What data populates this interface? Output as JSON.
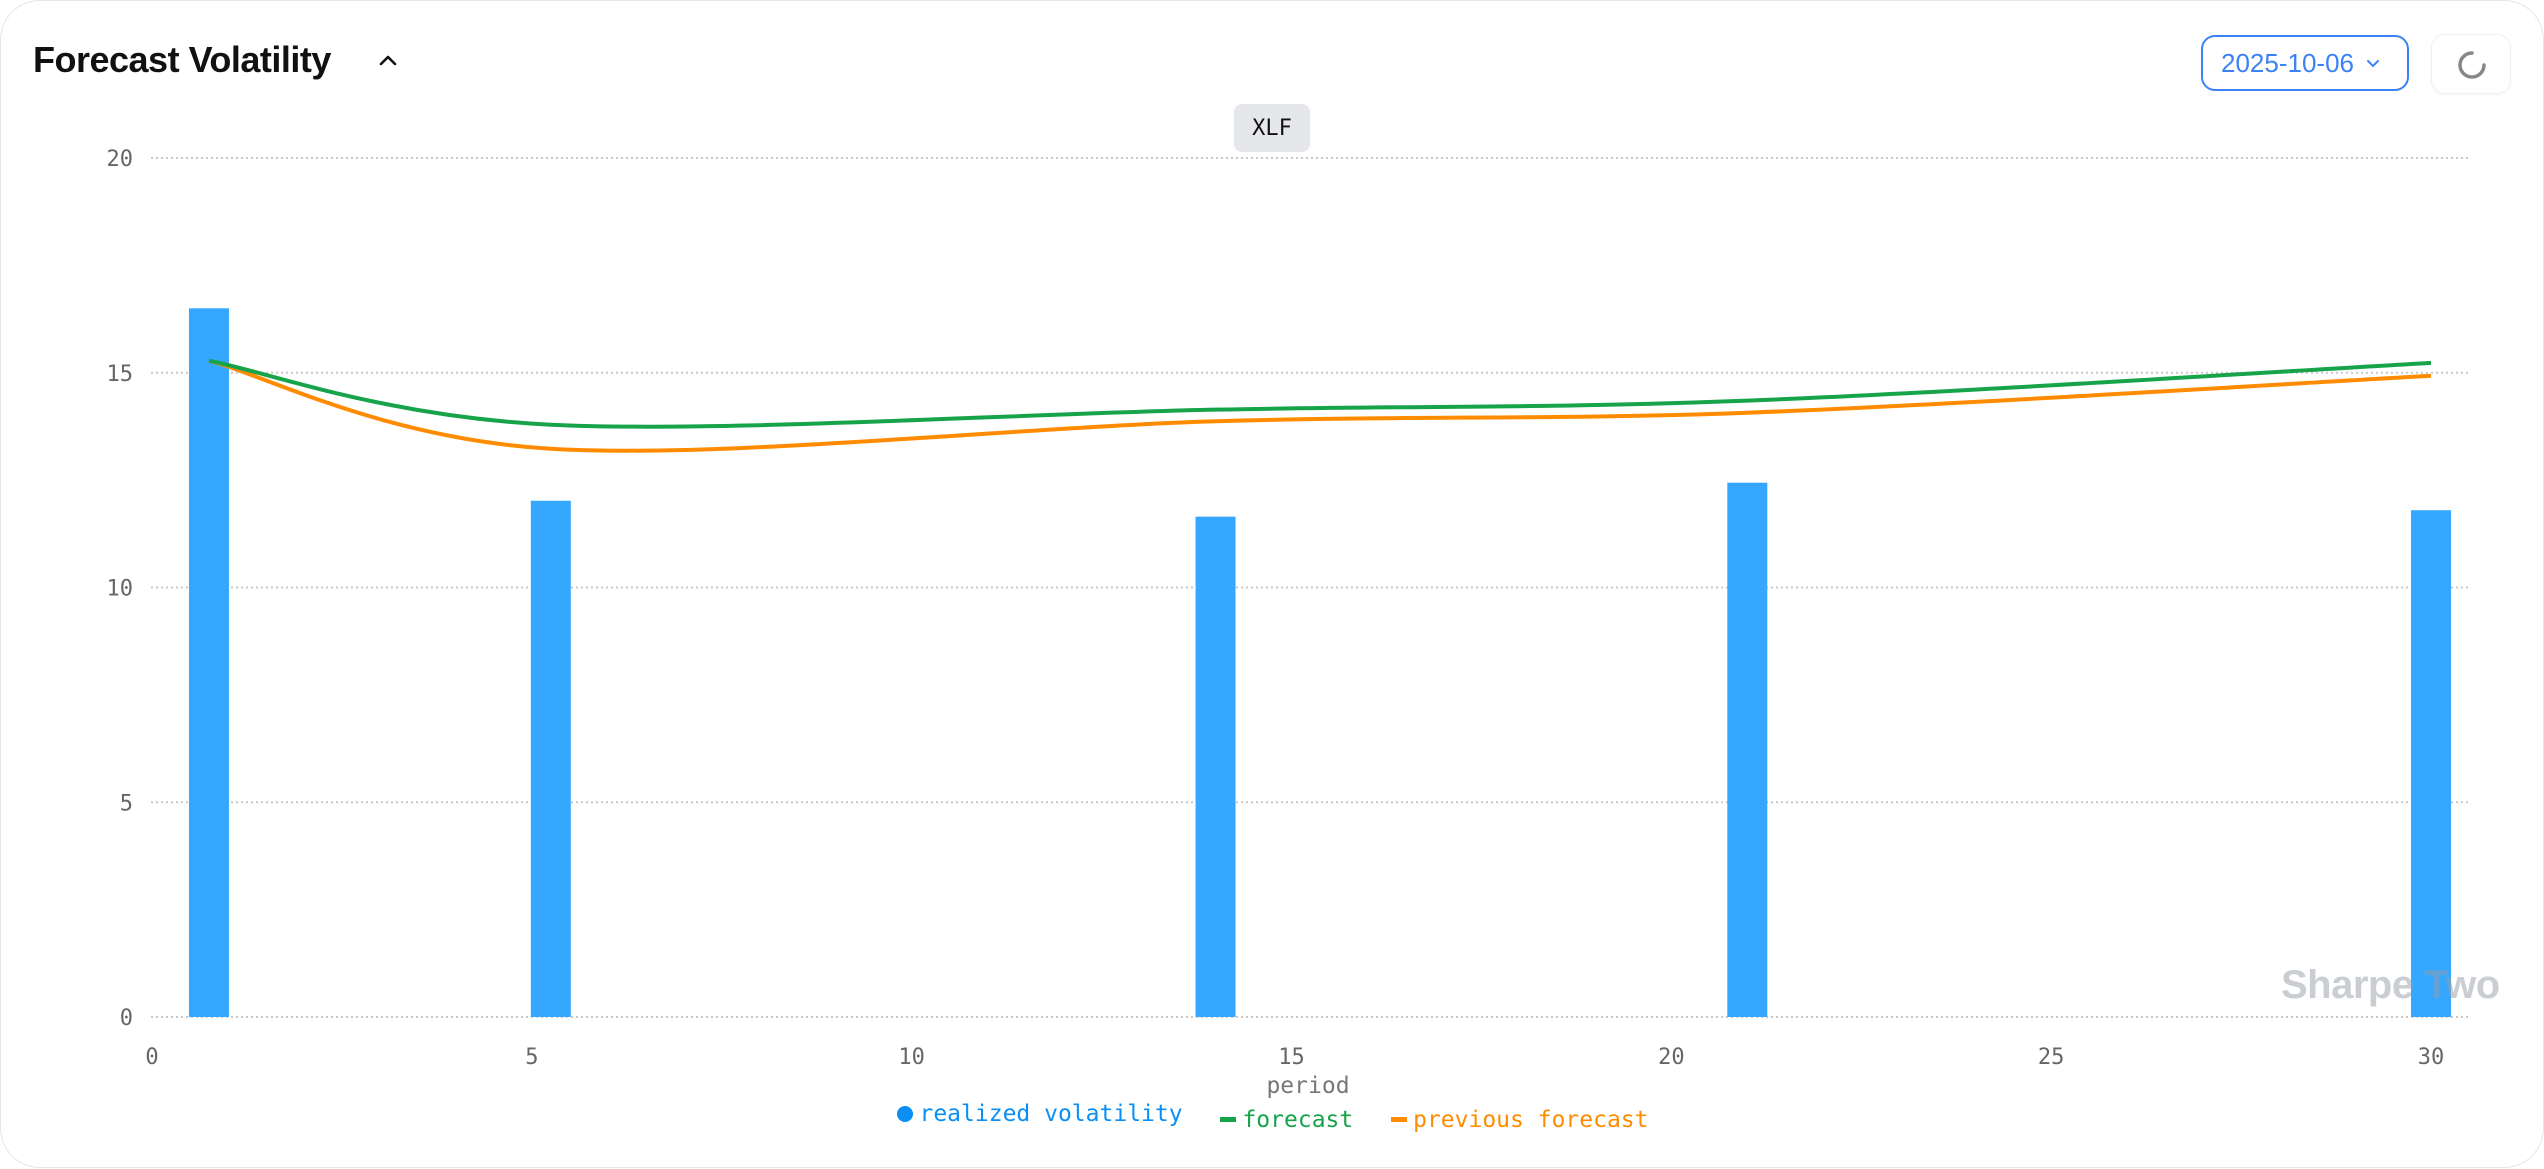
{
  "header": {
    "title": "Forecast Volatility",
    "collapse_icon": "chevron-up-icon",
    "date_select": {
      "value": "2025-10-06",
      "icon": "chevron-down-icon"
    },
    "refresh_icon": "loading-spinner-icon"
  },
  "watermark": "Sharpe Two",
  "colors": {
    "realized": "#35a7ff",
    "forecast": "#16a34a",
    "previous": "#ff8c00",
    "accent": "#3b82f6"
  },
  "chart_data": {
    "type": "bar+line",
    "title": "XLF",
    "xlabel": "period",
    "ylabel": "",
    "xlim": [
      0,
      31
    ],
    "ylim": [
      0,
      20
    ],
    "xticks": [
      "0",
      "5",
      "10",
      "15",
      "20",
      "25",
      "30"
    ],
    "yticks": [
      "0",
      "5",
      "10",
      "15",
      "20"
    ],
    "grid": "horizontal dotted",
    "legend": "bottom",
    "x": [
      0.75,
      5.25,
      14,
      21,
      30
    ],
    "series": [
      {
        "name": "realized volatility",
        "type": "bar",
        "values": [
          16.5,
          12.02,
          11.65,
          12.44,
          11.8
        ]
      },
      {
        "name": "forecast",
        "type": "line",
        "values": [
          15.28,
          13.79,
          14.14,
          14.35,
          15.23
        ]
      },
      {
        "name": "previous forecast",
        "type": "line",
        "values": [
          15.28,
          13.23,
          13.87,
          14.07,
          14.93
        ]
      }
    ]
  }
}
